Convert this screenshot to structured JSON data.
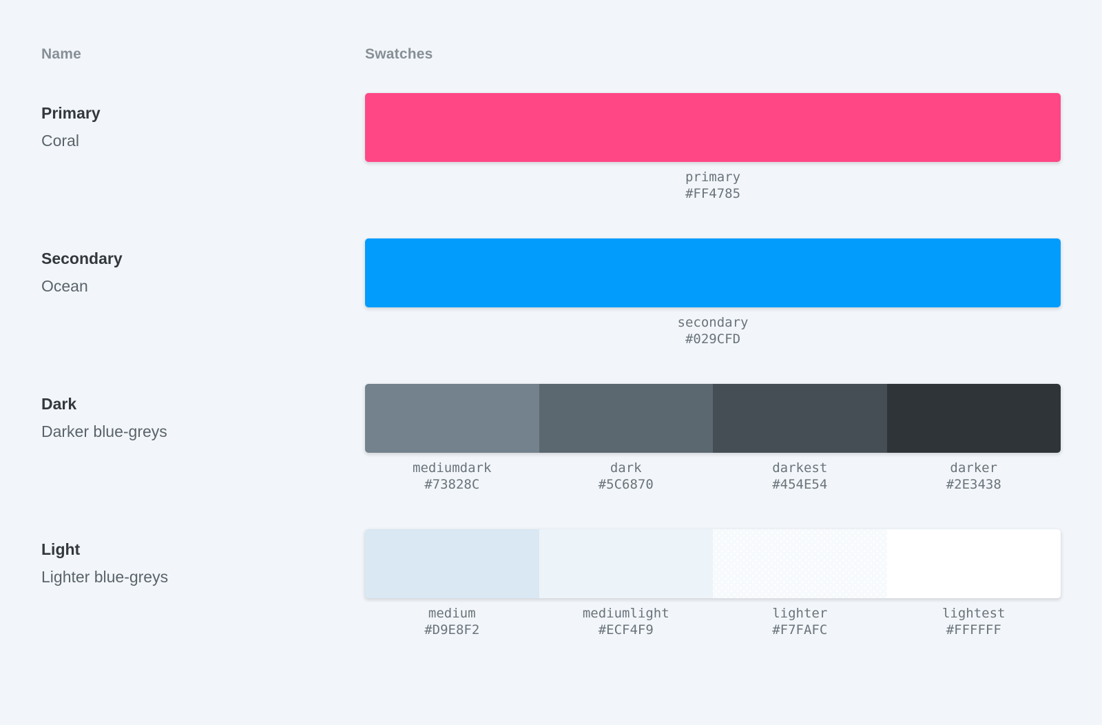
{
  "page": {
    "background": "#F2F6FA"
  },
  "table": {
    "headers": {
      "name": "Name",
      "swatches": "Swatches"
    },
    "rows": [
      {
        "title": "Primary",
        "subtitle": "Coral",
        "swatches": [
          {
            "name": "primary",
            "hex": "#FF4785",
            "dotted": false
          }
        ]
      },
      {
        "title": "Secondary",
        "subtitle": "Ocean",
        "swatches": [
          {
            "name": "secondary",
            "hex": "#029CFD",
            "dotted": false
          }
        ]
      },
      {
        "title": "Dark",
        "subtitle": "Darker blue-greys",
        "swatches": [
          {
            "name": "mediumdark",
            "hex": "#73828C",
            "dotted": false
          },
          {
            "name": "dark",
            "hex": "#5C6870",
            "dotted": false
          },
          {
            "name": "darkest",
            "hex": "#454E54",
            "dotted": false
          },
          {
            "name": "darker",
            "hex": "#2E3438",
            "dotted": false
          }
        ]
      },
      {
        "title": "Light",
        "subtitle": "Lighter blue-greys",
        "swatches": [
          {
            "name": "medium",
            "hex": "#D9E8F2",
            "dotted": false
          },
          {
            "name": "mediumlight",
            "hex": "#ECF4F9",
            "dotted": false
          },
          {
            "name": "lighter",
            "hex": "#F7FAFC",
            "dotted": true
          },
          {
            "name": "lightest",
            "hex": "#FFFFFF",
            "dotted": false
          }
        ]
      }
    ]
  }
}
